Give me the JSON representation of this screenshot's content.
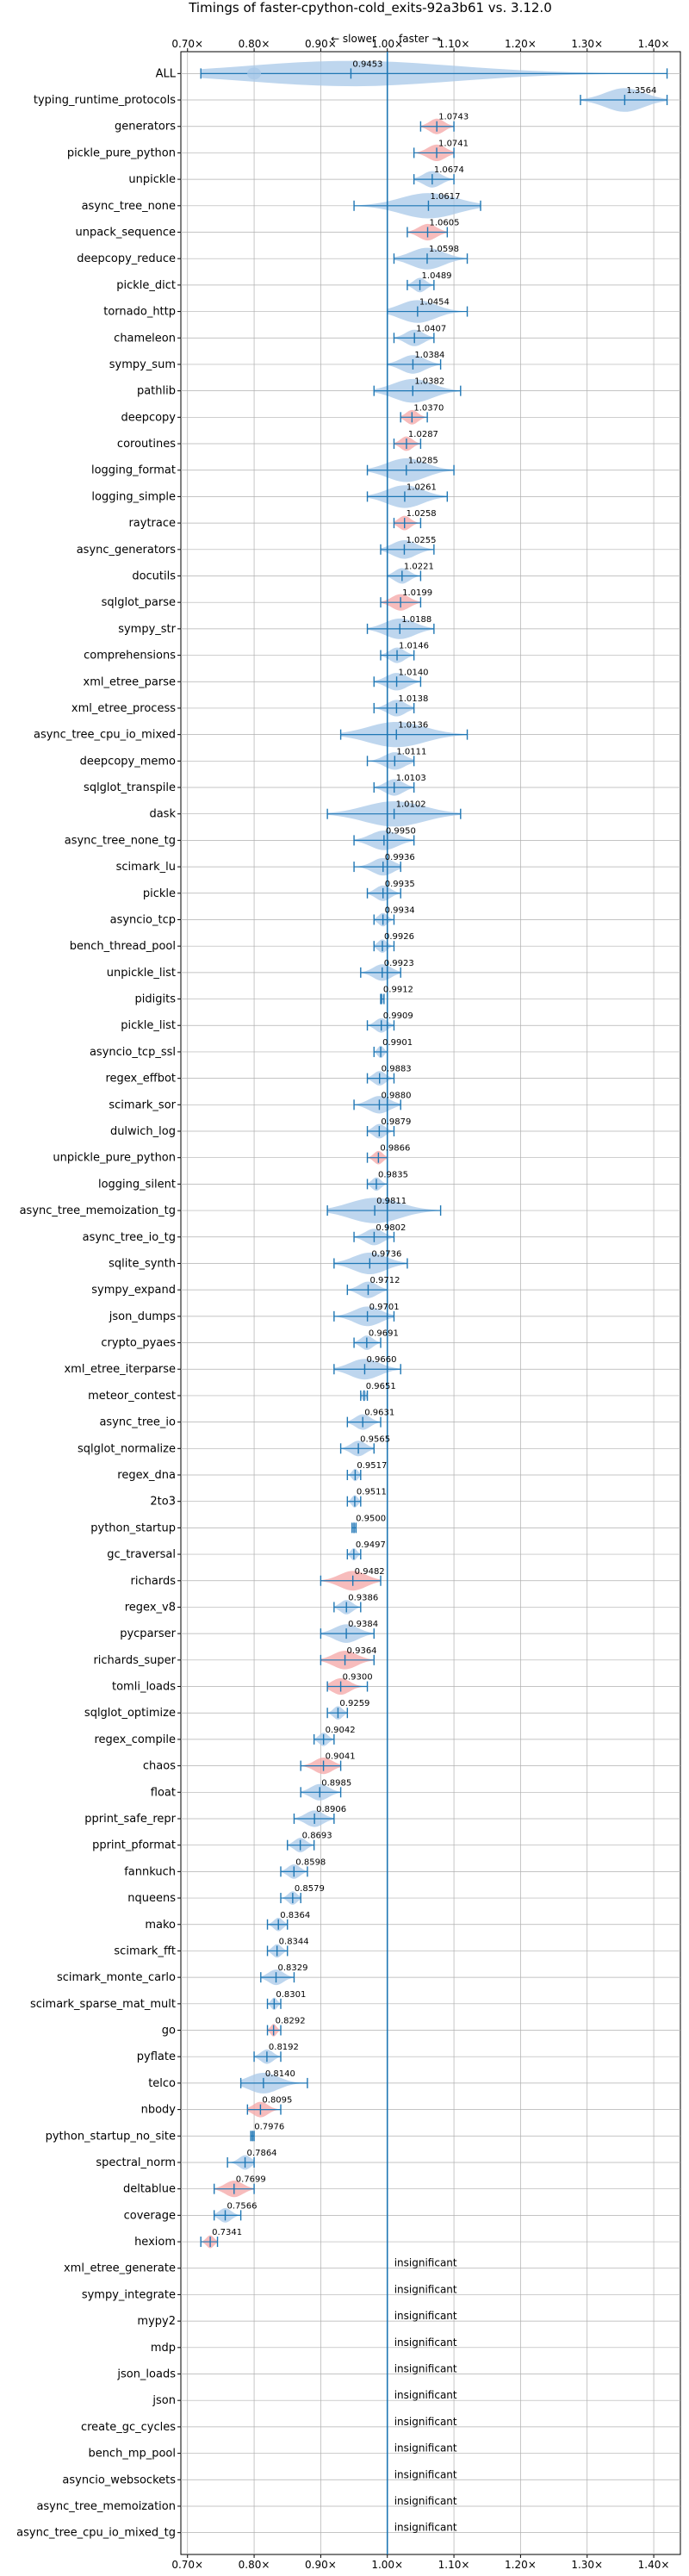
{
  "chart_data": {
    "type": "violin",
    "title": "Timings of faster-cpython-cold_exits-92a3b61 vs. 3.12.0",
    "direction_labels": {
      "slower": "← slower",
      "faster": "faster →"
    },
    "xlim": [
      0.69,
      1.44
    ],
    "x_ticks": [
      0.7,
      0.8,
      0.9,
      1.0,
      1.1,
      1.2,
      1.3,
      1.4
    ],
    "x_tick_labels": [
      "0.70×",
      "0.80×",
      "0.90×",
      "1.00×",
      "1.10×",
      "1.20×",
      "1.30×",
      "1.40×"
    ],
    "grid": true,
    "reference_line": 1.0,
    "colors": {
      "faster": "#a8c8e8",
      "slower": "#f4a6a6",
      "line": "#1f77b4",
      "grid": "#b0b0b0"
    },
    "insignificant_label": "insignificant",
    "benchmarks": [
      {
        "name": "ALL",
        "value": 0.9453,
        "label": "0.9453",
        "lo": 0.72,
        "hi": 1.42,
        "color": "faster",
        "extra": {
          "value": 1.3564,
          "label": "1.3564"
        }
      },
      {
        "name": "typing_runtime_protocols",
        "value": 1.3564,
        "label": "",
        "lo": 1.29,
        "hi": 1.42,
        "color": "faster"
      },
      {
        "name": "generators",
        "value": 1.0743,
        "label": "1.0743",
        "lo": 1.05,
        "hi": 1.1,
        "color": "slower"
      },
      {
        "name": "pickle_pure_python",
        "value": 1.0741,
        "label": "1.0741",
        "lo": 1.04,
        "hi": 1.1,
        "color": "slower"
      },
      {
        "name": "unpickle",
        "value": 1.0674,
        "label": "1.0674",
        "lo": 1.04,
        "hi": 1.1,
        "color": "faster"
      },
      {
        "name": "async_tree_none",
        "value": 1.0617,
        "label": "1.0617",
        "lo": 0.95,
        "hi": 1.14,
        "color": "faster"
      },
      {
        "name": "unpack_sequence",
        "value": 1.0605,
        "label": "1.0605",
        "lo": 1.03,
        "hi": 1.09,
        "color": "slower"
      },
      {
        "name": "deepcopy_reduce",
        "value": 1.0598,
        "label": "1.0598",
        "lo": 1.01,
        "hi": 1.12,
        "color": "faster"
      },
      {
        "name": "pickle_dict",
        "value": 1.0489,
        "label": "1.0489",
        "lo": 1.03,
        "hi": 1.07,
        "color": "faster"
      },
      {
        "name": "tornado_http",
        "value": 1.0454,
        "label": "1.0454",
        "lo": 1.0,
        "hi": 1.12,
        "color": "faster"
      },
      {
        "name": "chameleon",
        "value": 1.0407,
        "label": "1.0407",
        "lo": 1.01,
        "hi": 1.07,
        "color": "faster"
      },
      {
        "name": "sympy_sum",
        "value": 1.0384,
        "label": "1.0384",
        "lo": 1.0,
        "hi": 1.08,
        "color": "faster"
      },
      {
        "name": "pathlib",
        "value": 1.0382,
        "label": "1.0382",
        "lo": 0.98,
        "hi": 1.11,
        "color": "faster"
      },
      {
        "name": "deepcopy",
        "value": 1.037,
        "label": "1.0370",
        "lo": 1.02,
        "hi": 1.06,
        "color": "slower"
      },
      {
        "name": "coroutines",
        "value": 1.0287,
        "label": "1.0287",
        "lo": 1.01,
        "hi": 1.05,
        "color": "slower"
      },
      {
        "name": "logging_format",
        "value": 1.0285,
        "label": "1.0285",
        "lo": 0.97,
        "hi": 1.1,
        "color": "faster"
      },
      {
        "name": "logging_simple",
        "value": 1.0261,
        "label": "1.0261",
        "lo": 0.97,
        "hi": 1.09,
        "color": "faster"
      },
      {
        "name": "raytrace",
        "value": 1.0258,
        "label": "1.0258",
        "lo": 1.01,
        "hi": 1.05,
        "color": "slower"
      },
      {
        "name": "async_generators",
        "value": 1.0255,
        "label": "1.0255",
        "lo": 0.99,
        "hi": 1.07,
        "color": "faster"
      },
      {
        "name": "docutils",
        "value": 1.0221,
        "label": "1.0221",
        "lo": 1.0,
        "hi": 1.05,
        "color": "faster"
      },
      {
        "name": "sqlglot_parse",
        "value": 1.0199,
        "label": "1.0199",
        "lo": 0.99,
        "hi": 1.05,
        "color": "slower"
      },
      {
        "name": "sympy_str",
        "value": 1.0188,
        "label": "1.0188",
        "lo": 0.97,
        "hi": 1.07,
        "color": "faster"
      },
      {
        "name": "comprehensions",
        "value": 1.0146,
        "label": "1.0146",
        "lo": 0.99,
        "hi": 1.04,
        "color": "faster"
      },
      {
        "name": "xml_etree_parse",
        "value": 1.014,
        "label": "1.0140",
        "lo": 0.98,
        "hi": 1.05,
        "color": "faster"
      },
      {
        "name": "xml_etree_process",
        "value": 1.0138,
        "label": "1.0138",
        "lo": 0.98,
        "hi": 1.04,
        "color": "faster"
      },
      {
        "name": "async_tree_cpu_io_mixed",
        "value": 1.0136,
        "label": "1.0136",
        "lo": 0.93,
        "hi": 1.12,
        "color": "faster"
      },
      {
        "name": "deepcopy_memo",
        "value": 1.0111,
        "label": "1.0111",
        "lo": 0.97,
        "hi": 1.04,
        "color": "faster"
      },
      {
        "name": "sqlglot_transpile",
        "value": 1.0103,
        "label": "1.0103",
        "lo": 0.98,
        "hi": 1.04,
        "color": "faster"
      },
      {
        "name": "dask",
        "value": 1.0102,
        "label": "1.0102",
        "lo": 0.91,
        "hi": 1.11,
        "color": "faster"
      },
      {
        "name": "async_tree_none_tg",
        "value": 0.995,
        "label": "0.9950",
        "lo": 0.95,
        "hi": 1.04,
        "color": "faster"
      },
      {
        "name": "scimark_lu",
        "value": 0.9936,
        "label": "0.9936",
        "lo": 0.95,
        "hi": 1.02,
        "color": "faster"
      },
      {
        "name": "pickle",
        "value": 0.9935,
        "label": "0.9935",
        "lo": 0.97,
        "hi": 1.02,
        "color": "faster"
      },
      {
        "name": "asyncio_tcp",
        "value": 0.9934,
        "label": "0.9934",
        "lo": 0.98,
        "hi": 1.01,
        "color": "faster"
      },
      {
        "name": "bench_thread_pool",
        "value": 0.9926,
        "label": "0.9926",
        "lo": 0.98,
        "hi": 1.01,
        "color": "faster"
      },
      {
        "name": "unpickle_list",
        "value": 0.9923,
        "label": "0.9923",
        "lo": 0.96,
        "hi": 1.02,
        "color": "faster"
      },
      {
        "name": "pidigits",
        "value": 0.9912,
        "label": "0.9912",
        "lo": 0.99,
        "hi": 0.995,
        "color": "faster"
      },
      {
        "name": "pickle_list",
        "value": 0.9909,
        "label": "0.9909",
        "lo": 0.97,
        "hi": 1.01,
        "color": "faster"
      },
      {
        "name": "asyncio_tcp_ssl",
        "value": 0.9901,
        "label": "0.9901",
        "lo": 0.98,
        "hi": 1.0,
        "color": "faster"
      },
      {
        "name": "regex_effbot",
        "value": 0.9883,
        "label": "0.9883",
        "lo": 0.97,
        "hi": 1.01,
        "color": "faster"
      },
      {
        "name": "scimark_sor",
        "value": 0.988,
        "label": "0.9880",
        "lo": 0.95,
        "hi": 1.02,
        "color": "faster"
      },
      {
        "name": "dulwich_log",
        "value": 0.9879,
        "label": "0.9879",
        "lo": 0.97,
        "hi": 1.01,
        "color": "faster"
      },
      {
        "name": "unpickle_pure_python",
        "value": 0.9866,
        "label": "0.9866",
        "lo": 0.97,
        "hi": 1.0,
        "color": "slower"
      },
      {
        "name": "logging_silent",
        "value": 0.9835,
        "label": "0.9835",
        "lo": 0.97,
        "hi": 1.0,
        "color": "faster"
      },
      {
        "name": "async_tree_memoization_tg",
        "value": 0.9811,
        "label": "0.9811",
        "lo": 0.91,
        "hi": 1.08,
        "color": "faster"
      },
      {
        "name": "async_tree_io_tg",
        "value": 0.9802,
        "label": "0.9802",
        "lo": 0.95,
        "hi": 1.01,
        "color": "faster"
      },
      {
        "name": "sqlite_synth",
        "value": 0.9736,
        "label": "0.9736",
        "lo": 0.92,
        "hi": 1.03,
        "color": "faster"
      },
      {
        "name": "sympy_expand",
        "value": 0.9712,
        "label": "0.9712",
        "lo": 0.94,
        "hi": 1.0,
        "color": "faster"
      },
      {
        "name": "json_dumps",
        "value": 0.9701,
        "label": "0.9701",
        "lo": 0.92,
        "hi": 1.01,
        "color": "faster"
      },
      {
        "name": "crypto_pyaes",
        "value": 0.9691,
        "label": "0.9691",
        "lo": 0.95,
        "hi": 0.99,
        "color": "faster"
      },
      {
        "name": "xml_etree_iterparse",
        "value": 0.966,
        "label": "0.9660",
        "lo": 0.92,
        "hi": 1.02,
        "color": "faster"
      },
      {
        "name": "meteor_contest",
        "value": 0.9651,
        "label": "0.9651",
        "lo": 0.96,
        "hi": 0.97,
        "color": "faster"
      },
      {
        "name": "async_tree_io",
        "value": 0.9631,
        "label": "0.9631",
        "lo": 0.94,
        "hi": 0.99,
        "color": "faster"
      },
      {
        "name": "sqlglot_normalize",
        "value": 0.9565,
        "label": "0.9565",
        "lo": 0.93,
        "hi": 0.98,
        "color": "faster"
      },
      {
        "name": "regex_dna",
        "value": 0.9517,
        "label": "0.9517",
        "lo": 0.94,
        "hi": 0.96,
        "color": "faster"
      },
      {
        "name": "2to3",
        "value": 0.9511,
        "label": "0.9511",
        "lo": 0.94,
        "hi": 0.96,
        "color": "faster"
      },
      {
        "name": "python_startup",
        "value": 0.95,
        "label": "0.9500",
        "lo": 0.947,
        "hi": 0.953,
        "color": "faster"
      },
      {
        "name": "gc_traversal",
        "value": 0.9497,
        "label": "0.9497",
        "lo": 0.94,
        "hi": 0.96,
        "color": "faster"
      },
      {
        "name": "richards",
        "value": 0.9482,
        "label": "0.9482",
        "lo": 0.9,
        "hi": 0.99,
        "color": "slower"
      },
      {
        "name": "regex_v8",
        "value": 0.9386,
        "label": "0.9386",
        "lo": 0.92,
        "hi": 0.96,
        "color": "faster"
      },
      {
        "name": "pycparser",
        "value": 0.9384,
        "label": "0.9384",
        "lo": 0.9,
        "hi": 0.98,
        "color": "faster"
      },
      {
        "name": "richards_super",
        "value": 0.9364,
        "label": "0.9364",
        "lo": 0.9,
        "hi": 0.98,
        "color": "slower"
      },
      {
        "name": "tomli_loads",
        "value": 0.93,
        "label": "0.9300",
        "lo": 0.91,
        "hi": 0.97,
        "color": "slower"
      },
      {
        "name": "sqlglot_optimize",
        "value": 0.9259,
        "label": "0.9259",
        "lo": 0.91,
        "hi": 0.94,
        "color": "faster"
      },
      {
        "name": "regex_compile",
        "value": 0.9042,
        "label": "0.9042",
        "lo": 0.89,
        "hi": 0.92,
        "color": "faster"
      },
      {
        "name": "chaos",
        "value": 0.9041,
        "label": "0.9041",
        "lo": 0.87,
        "hi": 0.93,
        "color": "slower"
      },
      {
        "name": "float",
        "value": 0.8985,
        "label": "0.8985",
        "lo": 0.87,
        "hi": 0.93,
        "color": "faster"
      },
      {
        "name": "pprint_safe_repr",
        "value": 0.8906,
        "label": "0.8906",
        "lo": 0.86,
        "hi": 0.92,
        "color": "faster"
      },
      {
        "name": "pprint_pformat",
        "value": 0.8693,
        "label": "0.8693",
        "lo": 0.85,
        "hi": 0.89,
        "color": "faster"
      },
      {
        "name": "fannkuch",
        "value": 0.8598,
        "label": "0.8598",
        "lo": 0.84,
        "hi": 0.88,
        "color": "faster"
      },
      {
        "name": "nqueens",
        "value": 0.8579,
        "label": "0.8579",
        "lo": 0.84,
        "hi": 0.87,
        "color": "faster"
      },
      {
        "name": "mako",
        "value": 0.8364,
        "label": "0.8364",
        "lo": 0.82,
        "hi": 0.85,
        "color": "faster"
      },
      {
        "name": "scimark_fft",
        "value": 0.8344,
        "label": "0.8344",
        "lo": 0.82,
        "hi": 0.85,
        "color": "faster"
      },
      {
        "name": "scimark_monte_carlo",
        "value": 0.8329,
        "label": "0.8329",
        "lo": 0.81,
        "hi": 0.86,
        "color": "faster"
      },
      {
        "name": "scimark_sparse_mat_mult",
        "value": 0.8301,
        "label": "0.8301",
        "lo": 0.82,
        "hi": 0.84,
        "color": "faster"
      },
      {
        "name": "go",
        "value": 0.8292,
        "label": "0.8292",
        "lo": 0.82,
        "hi": 0.84,
        "color": "slower"
      },
      {
        "name": "pyflate",
        "value": 0.8192,
        "label": "0.8192",
        "lo": 0.8,
        "hi": 0.84,
        "color": "faster"
      },
      {
        "name": "telco",
        "value": 0.814,
        "label": "0.8140",
        "lo": 0.78,
        "hi": 0.88,
        "color": "faster"
      },
      {
        "name": "nbody",
        "value": 0.8095,
        "label": "0.8095",
        "lo": 0.79,
        "hi": 0.84,
        "color": "slower"
      },
      {
        "name": "python_startup_no_site",
        "value": 0.7976,
        "label": "0.7976",
        "lo": 0.795,
        "hi": 0.8,
        "color": "faster"
      },
      {
        "name": "spectral_norm",
        "value": 0.7864,
        "label": "0.7864",
        "lo": 0.76,
        "hi": 0.8,
        "color": "faster"
      },
      {
        "name": "deltablue",
        "value": 0.7699,
        "label": "0.7699",
        "lo": 0.74,
        "hi": 0.8,
        "color": "slower"
      },
      {
        "name": "coverage",
        "value": 0.7566,
        "label": "0.7566",
        "lo": 0.74,
        "hi": 0.78,
        "color": "faster"
      },
      {
        "name": "hexiom",
        "value": 0.7341,
        "label": "0.7341",
        "lo": 0.72,
        "hi": 0.745,
        "color": "slower"
      },
      {
        "name": "xml_etree_generate",
        "value": null,
        "label": "insignificant"
      },
      {
        "name": "sympy_integrate",
        "value": null,
        "label": "insignificant"
      },
      {
        "name": "mypy2",
        "value": null,
        "label": "insignificant"
      },
      {
        "name": "mdp",
        "value": null,
        "label": "insignificant"
      },
      {
        "name": "json_loads",
        "value": null,
        "label": "insignificant"
      },
      {
        "name": "json",
        "value": null,
        "label": "insignificant"
      },
      {
        "name": "create_gc_cycles",
        "value": null,
        "label": "insignificant"
      },
      {
        "name": "bench_mp_pool",
        "value": null,
        "label": "insignificant"
      },
      {
        "name": "asyncio_websockets",
        "value": null,
        "label": "insignificant"
      },
      {
        "name": "async_tree_memoization",
        "value": null,
        "label": "insignificant"
      },
      {
        "name": "async_tree_cpu_io_mixed_tg",
        "value": null,
        "label": "insignificant"
      }
    ]
  }
}
